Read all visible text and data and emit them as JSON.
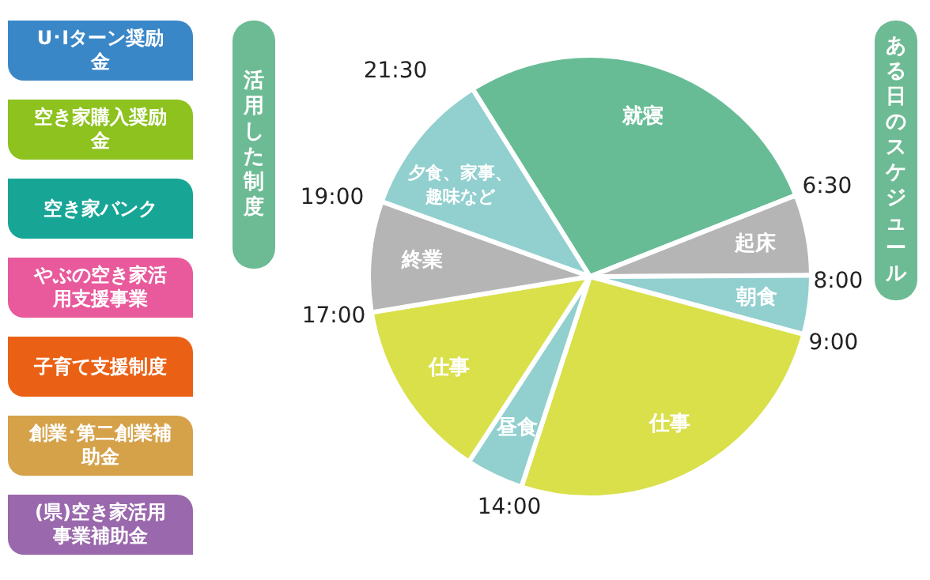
{
  "chart_data": [
    {
      "type": "other",
      "title": "活用した制度",
      "annotations": [
        "U･Iターン奨励金",
        "空き家購入奨励金",
        "空き家バンク",
        "やぶの空き家活用支援事業",
        "子育て支援制度",
        "創業･第二創業補助金",
        "(県)空き家活用事業補助金"
      ],
      "colors": [
        "#3a87c8",
        "#8dc21f",
        "#17a596",
        "#e85a9b",
        "#ea6115",
        "#d5a24a",
        "#9a68ac"
      ]
    },
    {
      "type": "pie",
      "title": "ある日のスケジュール",
      "categories": [
        "就寝",
        "起床",
        "朝食",
        "仕事",
        "昼食",
        "仕事",
        "終業",
        "夕食、家事、趣味など"
      ],
      "values": [
        27.9,
        5.9,
        4.3,
        25.8,
        4.2,
        13.2,
        8.1,
        10.6
      ],
      "colors": [
        "#67bc96",
        "#b5b5b5",
        "#92cfcf",
        "#d9e04a",
        "#92cfcf",
        "#d9e04a",
        "#b5b5b5",
        "#92cfcf"
      ],
      "annotations": [
        "21:30",
        "6:30",
        "8:00",
        "9:00",
        "14:00",
        "17:00",
        "19:00"
      ],
      "legend": false
    }
  ]
}
